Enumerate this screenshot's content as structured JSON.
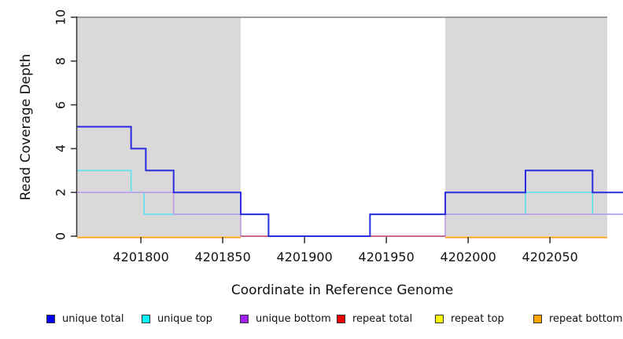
{
  "chart_data": {
    "type": "line",
    "subtype": "step-coverage",
    "title": "",
    "xlabel": "Coordinate in Reference Genome",
    "ylabel": "Read Coverage Depth",
    "xlim": [
      4201761,
      4202095
    ],
    "ylim": [
      0,
      10
    ],
    "grid": false,
    "legend_position": "bottom",
    "x_ticks": [
      4201800,
      4201850,
      4201900,
      4201950,
      4202000,
      4202050
    ],
    "y_ticks": [
      0,
      2,
      4,
      6,
      8,
      10
    ],
    "shaded_regions": [
      {
        "x0": 4201761,
        "x1": 4201861,
        "fill": "#d9d9d9"
      },
      {
        "x0": 4201986,
        "x1": 4202085,
        "fill": "#d9d9d9"
      }
    ],
    "top_boundary_line": {
      "y": 10,
      "x0": 4201761,
      "x1": 4202085,
      "color": "#8f8f8f"
    },
    "series": [
      {
        "name": "unique total",
        "legend_color": "#0000ee",
        "line_color": "#2b2be0",
        "width": 2,
        "z": 6,
        "points": [
          [
            4201761,
            5
          ],
          [
            4201794,
            4
          ],
          [
            4201803,
            3
          ],
          [
            4201820,
            2
          ],
          [
            4201861,
            1
          ],
          [
            4201878,
            0
          ],
          [
            4201940,
            1
          ],
          [
            4201986,
            2
          ],
          [
            4202035,
            3
          ],
          [
            4202076,
            2
          ]
        ],
        "end": 4202095
      },
      {
        "name": "unique top",
        "legend_color": "#00ffff",
        "line_color": "#5be4ef",
        "width": 1.6,
        "z": 1,
        "points": [
          [
            4201761,
            3
          ],
          [
            4201794,
            2
          ],
          [
            4201802,
            1
          ],
          [
            4201878,
            0
          ],
          [
            4201940,
            1
          ],
          [
            4202035,
            2
          ],
          [
            4202076,
            1
          ]
        ],
        "end": 4202095
      },
      {
        "name": "unique bottom",
        "legend_color": "#a020f0",
        "line_color": "#bc9ce8",
        "width": 1.6,
        "z": 2,
        "points": [
          [
            4201761,
            2
          ],
          [
            4201820,
            1
          ],
          [
            4201861,
            0
          ],
          [
            4201986,
            1
          ]
        ],
        "end": 4202095
      },
      {
        "name": "repeat total",
        "legend_color": "#ee0000",
        "line_color": "#c94a66",
        "width": 1.6,
        "z": 3,
        "points": [
          [
            4201861,
            0
          ]
        ],
        "end": 4201986
      },
      {
        "name": "repeat top",
        "legend_color": "#ffff00",
        "line_color": "#ffe000",
        "width": 1.6,
        "z": 4,
        "dy": 1.5,
        "segments": [
          {
            "points": [
              [
                4201761,
                0
              ]
            ],
            "end": 4201861
          },
          {
            "points": [
              [
                4201986,
                0
              ]
            ],
            "end": 4202085
          }
        ]
      },
      {
        "name": "repeat bottom",
        "legend_color": "#ffa500",
        "line_color": "#ff9e1f",
        "width": 2,
        "z": 5,
        "dy": 1.5,
        "segments": [
          {
            "points": [
              [
                4201761,
                0
              ]
            ],
            "end": 4201861
          },
          {
            "points": [
              [
                4201986,
                0
              ]
            ],
            "end": 4202085
          }
        ]
      }
    ]
  },
  "legend": {
    "items": [
      {
        "label": "unique total",
        "color": "#0000ee"
      },
      {
        "label": "unique top",
        "color": "#00ffff"
      },
      {
        "label": "unique bottom",
        "color": "#a020f0"
      },
      {
        "label": "repeat total",
        "color": "#ee0000"
      },
      {
        "label": "repeat top",
        "color": "#ffff00"
      },
      {
        "label": "repeat bottom",
        "color": "#ffa500"
      }
    ]
  },
  "axis_colors": {
    "axis": "#333333",
    "text": "#111111"
  }
}
